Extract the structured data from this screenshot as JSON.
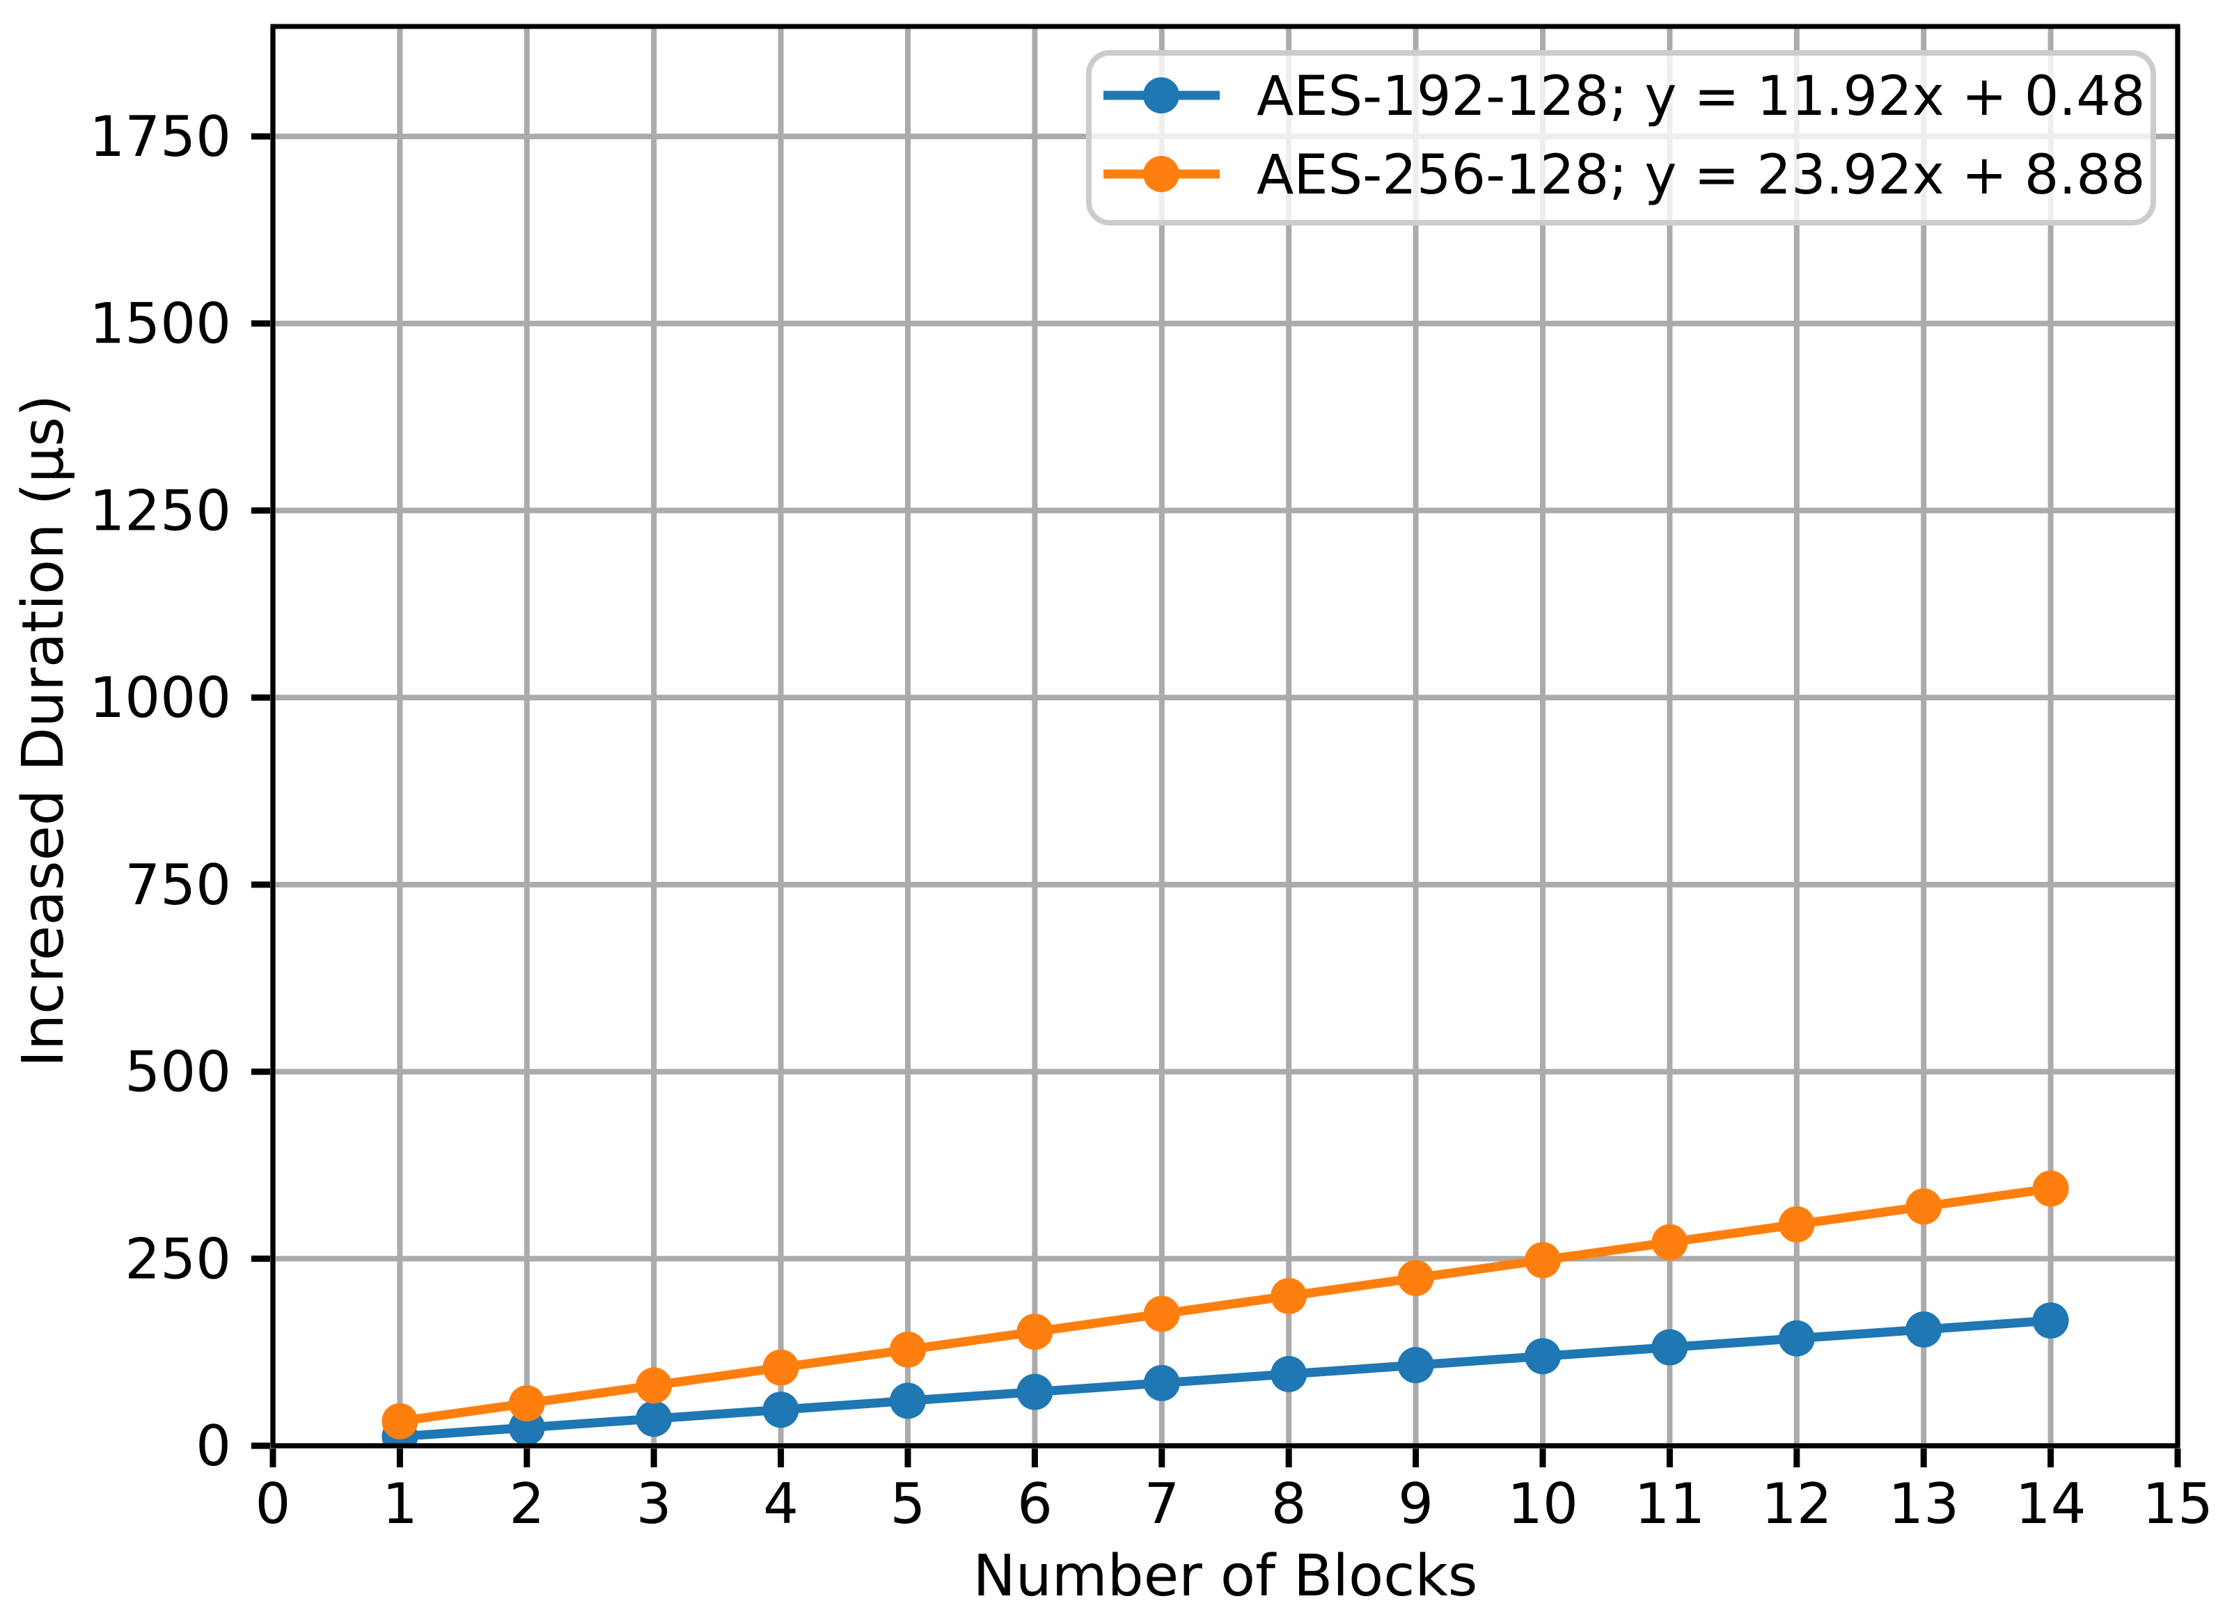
{
  "chart_data": {
    "type": "line",
    "title": "",
    "xlabel": "Number of Blocks",
    "ylabel": "Increased Duration (μs)",
    "xlim": [
      0,
      15
    ],
    "ylim": [
      0,
      1897
    ],
    "xticks": [
      0,
      1,
      2,
      3,
      4,
      5,
      6,
      7,
      8,
      9,
      10,
      11,
      12,
      13,
      14,
      15
    ],
    "yticks": [
      0,
      250,
      500,
      750,
      1000,
      1250,
      1500,
      1750
    ],
    "grid": true,
    "legend_position": "upper right",
    "x": [
      1,
      2,
      3,
      4,
      5,
      6,
      7,
      8,
      9,
      10,
      11,
      12,
      13,
      14
    ],
    "series": [
      {
        "name": "AES-192-128; y = 11.92x + 0.48",
        "color": "#1f77b4",
        "values": [
          12.4,
          24.3,
          36.2,
          48.2,
          60.1,
          72.0,
          83.9,
          95.8,
          107.8,
          119.7,
          131.6,
          143.5,
          155.4,
          167.4
        ]
      },
      {
        "name": "AES-256-128; y = 23.92x + 8.88",
        "color": "#ff7f0e",
        "values": [
          32.8,
          56.7,
          80.6,
          104.6,
          128.5,
          152.4,
          176.3,
          200.2,
          224.2,
          248.1,
          272.0,
          295.9,
          319.8,
          343.8
        ]
      }
    ]
  },
  "colors": {
    "background": "#ffffff",
    "grid": "#ababab",
    "axis": "#000000",
    "text": "#000000",
    "legend_border": "#cccccc",
    "legend_fill_alpha": "0.8"
  }
}
